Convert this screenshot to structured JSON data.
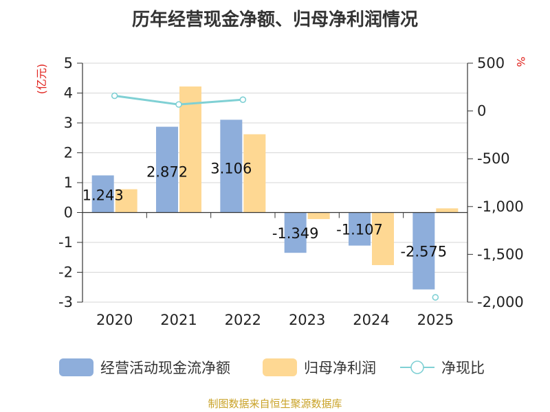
{
  "chart_data": {
    "type": "bar",
    "title": "历年经营现金净额、归母净利润情况",
    "categories": [
      "2020",
      "2021",
      "2022",
      "2023",
      "2024",
      "2025"
    ],
    "left_unit": "(亿元)",
    "right_unit": "%",
    "left_ylim": [
      -3,
      5
    ],
    "left_ticks": [
      5,
      4,
      3,
      2,
      1,
      0,
      -1,
      -2,
      -3
    ],
    "right_ylim": [
      -2000,
      500
    ],
    "right_ticks": [
      {
        "v": 500,
        "label": "500"
      },
      {
        "v": 0,
        "label": "0"
      },
      {
        "v": -500,
        "label": "-500"
      },
      {
        "v": -1000,
        "label": "-1,000"
      },
      {
        "v": -1500,
        "label": "-1,500"
      },
      {
        "v": -2000,
        "label": "-2,000"
      }
    ],
    "series": [
      {
        "name": "经营活动现金流净额",
        "kind": "bar",
        "axis": "left",
        "color": "#8eaedb",
        "values": [
          1.243,
          2.872,
          3.106,
          -1.349,
          -1.107,
          -2.575
        ],
        "labels": [
          "1.243",
          "2.872",
          "3.106",
          "-1.349",
          "-1.107",
          "-2.575"
        ]
      },
      {
        "name": "归母净利润",
        "kind": "bar",
        "axis": "left",
        "color": "#fed893",
        "values": [
          0.78,
          4.22,
          2.62,
          -0.22,
          -1.76,
          0.14
        ]
      },
      {
        "name": "净现比",
        "kind": "line",
        "axis": "right",
        "color": "#7fd0d4",
        "values": [
          159,
          68,
          118,
          null,
          null,
          -1950
        ]
      }
    ],
    "legend": [
      "经营活动现金流净额",
      "归母净利润",
      "净现比"
    ],
    "source": "制图数据来自恒生聚源数据库"
  }
}
